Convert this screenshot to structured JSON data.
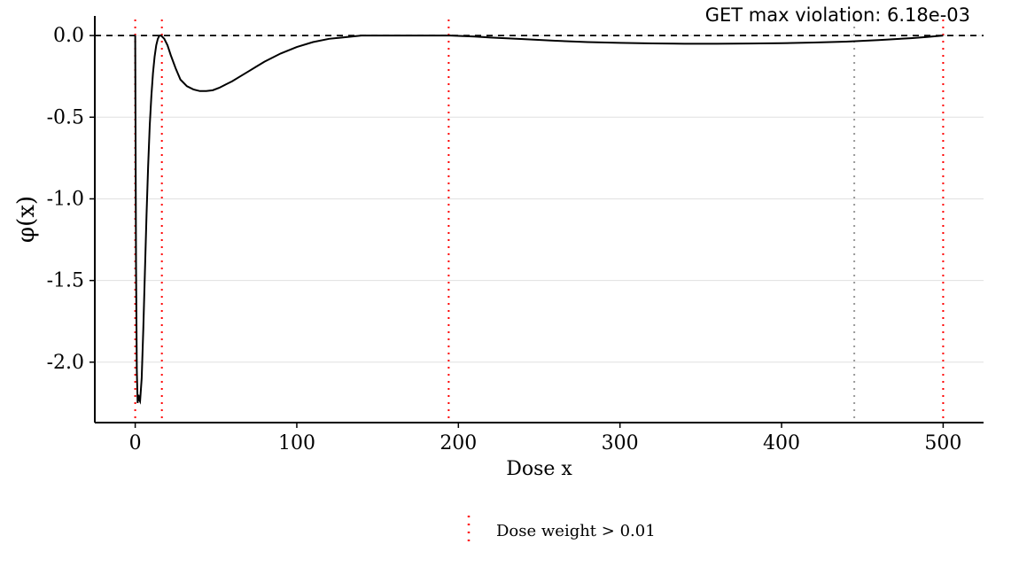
{
  "chart_data": {
    "type": "line",
    "title": "",
    "xlabel": "Dose x",
    "ylabel": "φ(x)",
    "xlim": [
      -25,
      525
    ],
    "ylim": [
      -2.37,
      0.12
    ],
    "x_ticks": [
      0,
      100,
      200,
      300,
      400,
      500
    ],
    "x_tick_labels": [
      "0",
      "100",
      "200",
      "300",
      "400",
      "500"
    ],
    "y_ticks": [
      0.0,
      -0.5,
      -1.0,
      -1.5,
      -2.0
    ],
    "y_tick_labels": [
      "0.0",
      "-0.5",
      "-1.0",
      "-1.5",
      "-2.0"
    ],
    "grid": "horizontal",
    "annotation": "GET max violation: 6.18e-03",
    "reference_line": {
      "y": 0,
      "style": "dashed",
      "color": "#000000"
    },
    "series": [
      {
        "color": "#000000",
        "x": [
          0,
          0.5,
          1,
          1.5,
          2,
          2.5,
          3,
          4,
          5,
          6,
          7,
          8,
          9,
          10,
          11,
          12,
          13,
          14,
          15,
          16,
          17,
          18,
          20,
          22,
          25,
          28,
          32,
          36,
          40,
          44,
          48,
          52,
          56,
          60,
          65,
          70,
          75,
          80,
          90,
          100,
          110,
          120,
          130,
          140,
          150,
          160,
          170,
          180,
          190,
          195,
          200,
          210,
          220,
          240,
          260,
          280,
          300,
          320,
          340,
          360,
          380,
          400,
          420,
          440,
          460,
          480,
          490,
          500
        ],
        "y": [
          0.0,
          -1.4,
          -2.05,
          -2.25,
          -2.2,
          -2.23,
          -2.24,
          -2.1,
          -1.8,
          -1.45,
          -1.1,
          -0.8,
          -0.55,
          -0.37,
          -0.23,
          -0.13,
          -0.06,
          -0.02,
          0.0,
          0.0,
          -0.01,
          -0.02,
          -0.06,
          -0.12,
          -0.2,
          -0.27,
          -0.31,
          -0.33,
          -0.34,
          -0.34,
          -0.335,
          -0.32,
          -0.3,
          -0.28,
          -0.25,
          -0.22,
          -0.19,
          -0.16,
          -0.11,
          -0.07,
          -0.04,
          -0.02,
          -0.01,
          0.0,
          0.0,
          0.0,
          0.0,
          0.0,
          0.0,
          0.0,
          -0.002,
          -0.006,
          -0.012,
          -0.022,
          -0.032,
          -0.04,
          -0.045,
          -0.048,
          -0.05,
          -0.05,
          -0.049,
          -0.047,
          -0.043,
          -0.037,
          -0.028,
          -0.016,
          -0.009,
          0.0
        ]
      }
    ],
    "vertical_lines": [
      {
        "x": 0,
        "color": "#ff0000",
        "style": "dotted",
        "group": "dose"
      },
      {
        "x": 16.5,
        "color": "#ff0000",
        "style": "dotted",
        "group": "dose"
      },
      {
        "x": 194,
        "color": "#ff0000",
        "style": "dotted",
        "group": "dose"
      },
      {
        "x": 445,
        "color": "#999999",
        "style": "dotted",
        "group": "other"
      },
      {
        "x": 500,
        "color": "#ff0000",
        "style": "dotted",
        "group": "dose"
      }
    ],
    "legend": {
      "placement": "bottom",
      "entries": [
        {
          "label": "Dose weight > 0.01",
          "color": "#ff0000",
          "style": "dotted"
        }
      ]
    }
  }
}
